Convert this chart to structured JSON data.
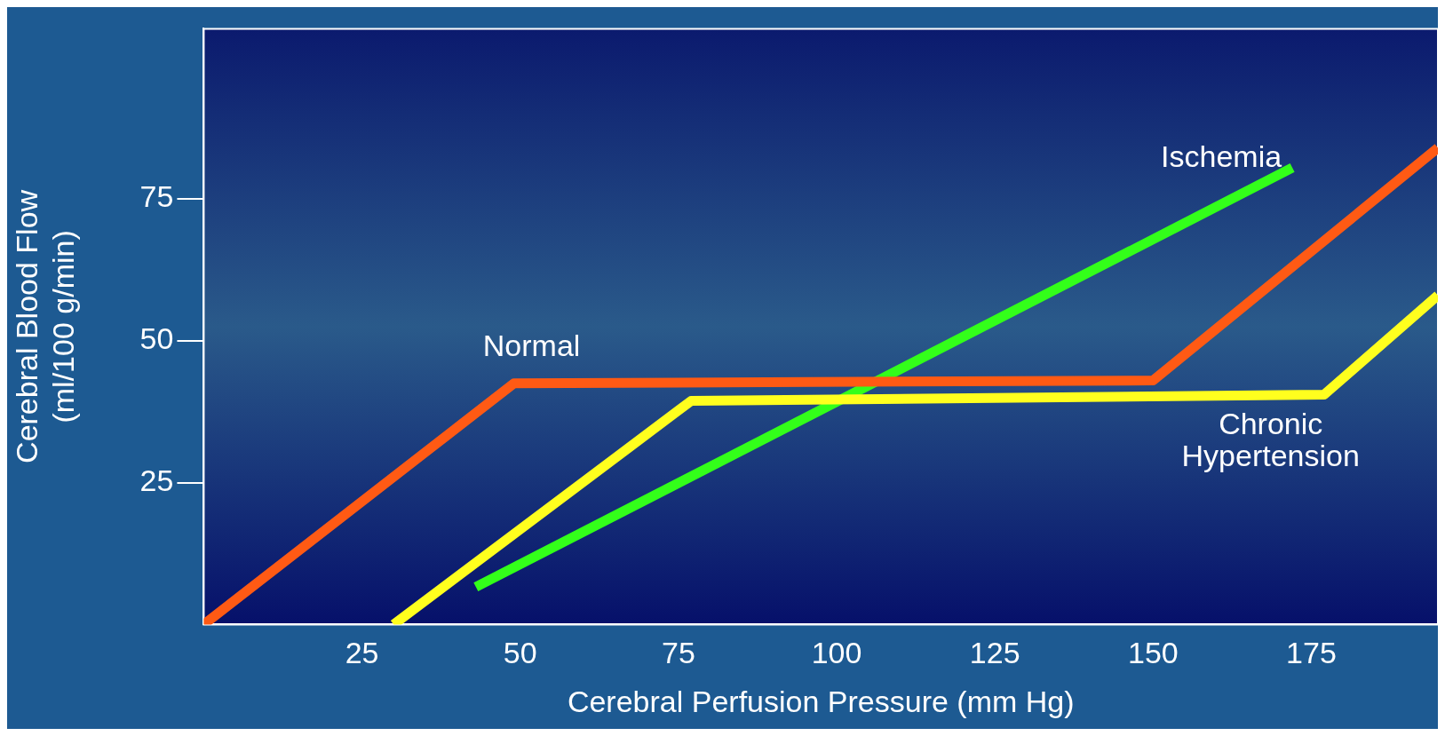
{
  "chart_data": {
    "type": "line",
    "xlabel": "Cerebral Perfusion Pressure (mm Hg)",
    "ylabel": "Cerebral Blood Flow (ml/100 g/min)",
    "xlim": [
      0,
      195
    ],
    "ylim": [
      0,
      105
    ],
    "xticks": [
      25,
      50,
      75,
      100,
      125,
      150,
      175
    ],
    "yticks": [
      25,
      50,
      75
    ],
    "marker": "none",
    "line_style": "solid",
    "legend": false,
    "series": [
      {
        "name": "Normal",
        "color": "#ff5a14",
        "x": [
          0,
          49,
          150,
          195
        ],
        "values": [
          0,
          42.5,
          43,
          84
        ]
      },
      {
        "name": "Chronic Hypertension",
        "color": "#ffff1e",
        "x": [
          30,
          77,
          177,
          195
        ],
        "values": [
          0,
          39.4,
          40.5,
          58
        ]
      },
      {
        "name": "Ischemia",
        "color": "#33ff1a",
        "x": [
          43,
          172
        ],
        "values": [
          6.6,
          80.5
        ]
      }
    ]
  }
}
